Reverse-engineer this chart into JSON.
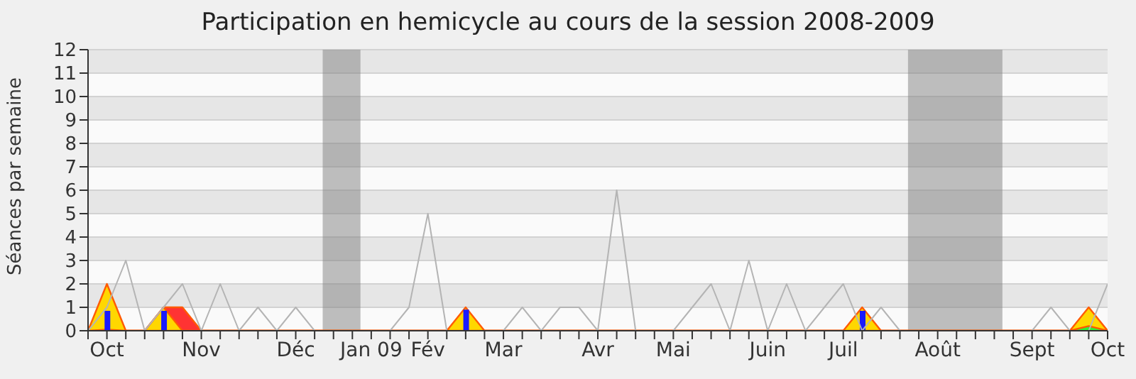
{
  "chart_data": {
    "type": "line",
    "title": "Participation en hemicycle au cours de la session 2008-2009",
    "ylabel": "Séances par semaine",
    "x": [
      "2008-09-29",
      "2008-10-06",
      "2008-10-13",
      "2008-10-20",
      "2008-10-27",
      "2008-11-03",
      "2008-11-10",
      "2008-11-17",
      "2008-11-24",
      "2008-12-01",
      "2008-12-08",
      "2008-12-15",
      "2008-12-22",
      "2008-12-29",
      "2009-01-05",
      "2009-01-12",
      "2009-01-19",
      "2009-01-26",
      "2009-02-02",
      "2009-02-09",
      "2009-02-16",
      "2009-02-23",
      "2009-03-02",
      "2009-03-09",
      "2009-03-16",
      "2009-03-23",
      "2009-03-30",
      "2009-04-06",
      "2009-04-13",
      "2009-04-20",
      "2009-04-27",
      "2009-05-04",
      "2009-05-11",
      "2009-05-18",
      "2009-05-25",
      "2009-06-01",
      "2009-06-08",
      "2009-06-15",
      "2009-06-22",
      "2009-06-29",
      "2009-07-06",
      "2009-07-13",
      "2009-07-20",
      "2009-07-27",
      "2009-08-03",
      "2009-08-10",
      "2009-08-17",
      "2009-08-24",
      "2009-08-31",
      "2009-09-07",
      "2009-09-14",
      "2009-09-21",
      "2009-09-28",
      "2009-10-05",
      "2009-10-12"
    ],
    "xlim": [
      "2008-09-29",
      "2009-10-12"
    ],
    "xticks": [
      {
        "value": "2008-09-29",
        "label": null
      },
      {
        "value": "2008-10-06",
        "label": "Oct"
      },
      {
        "value": "2008-10-13",
        "label": null
      },
      {
        "value": "2008-10-20",
        "label": null
      },
      {
        "value": "2008-10-27",
        "label": null
      },
      {
        "value": "2008-11-03",
        "label": null
      },
      {
        "value": "2008-11-10",
        "label": "Nov"
      },
      {
        "value": "2008-11-17",
        "label": null
      },
      {
        "value": "2008-11-24",
        "label": null
      },
      {
        "value": "2008-12-01",
        "label": null
      },
      {
        "value": "2008-12-08",
        "label": null
      },
      {
        "value": "2008-12-15",
        "label": "Déc"
      },
      {
        "value": "2008-12-22",
        "label": null
      },
      {
        "value": "2008-12-29",
        "label": null
      },
      {
        "value": "2009-01-05",
        "label": null
      },
      {
        "value": "2009-01-12",
        "label": "Jan 09"
      },
      {
        "value": "2009-01-19",
        "label": null
      },
      {
        "value": "2009-01-26",
        "label": null
      },
      {
        "value": "2009-02-02",
        "label": "Fév"
      },
      {
        "value": "2009-02-09",
        "label": null
      },
      {
        "value": "2009-02-16",
        "label": null
      },
      {
        "value": "2009-02-23",
        "label": null
      },
      {
        "value": "2009-03-02",
        "label": "Mar"
      },
      {
        "value": "2009-03-09",
        "label": null
      },
      {
        "value": "2009-03-16",
        "label": null
      },
      {
        "value": "2009-03-23",
        "label": null
      },
      {
        "value": "2009-03-30",
        "label": null
      },
      {
        "value": "2009-04-06",
        "label": "Avr"
      },
      {
        "value": "2009-04-13",
        "label": null
      },
      {
        "value": "2009-04-20",
        "label": null
      },
      {
        "value": "2009-04-27",
        "label": null
      },
      {
        "value": "2009-05-04",
        "label": "Mai"
      },
      {
        "value": "2009-05-11",
        "label": null
      },
      {
        "value": "2009-05-18",
        "label": null
      },
      {
        "value": "2009-05-25",
        "label": null
      },
      {
        "value": "2009-06-01",
        "label": null
      },
      {
        "value": "2009-06-08",
        "label": "Juin"
      },
      {
        "value": "2009-06-15",
        "label": null
      },
      {
        "value": "2009-06-22",
        "label": null
      },
      {
        "value": "2009-06-29",
        "label": null
      },
      {
        "value": "2009-07-06",
        "label": "Juil"
      },
      {
        "value": "2009-07-13",
        "label": null
      },
      {
        "value": "2009-07-20",
        "label": null
      },
      {
        "value": "2009-07-27",
        "label": null
      },
      {
        "value": "2009-08-03",
        "label": null
      },
      {
        "value": "2009-08-10",
        "label": "Août"
      },
      {
        "value": "2009-08-17",
        "label": null
      },
      {
        "value": "2009-08-24",
        "label": null
      },
      {
        "value": "2009-08-31",
        "label": null
      },
      {
        "value": "2009-09-07",
        "label": null
      },
      {
        "value": "2009-09-14",
        "label": "Sept"
      },
      {
        "value": "2009-09-21",
        "label": null
      },
      {
        "value": "2009-09-28",
        "label": null
      },
      {
        "value": "2009-10-05",
        "label": null
      },
      {
        "value": "2009-10-12",
        "label": "Oct"
      }
    ],
    "ylim": [
      0,
      12
    ],
    "yticks": [
      0,
      1,
      2,
      3,
      4,
      5,
      6,
      7,
      8,
      9,
      10,
      11,
      12
    ],
    "grid": "y",
    "bands": [
      {
        "axis": "x",
        "from": "2008-12-25",
        "to": "2009-01-08",
        "color": "#808080"
      },
      {
        "axis": "x",
        "from": "2009-07-30",
        "to": "2009-09-03",
        "color": "#808080"
      }
    ],
    "series": [
      {
        "color": "#b4b4b4",
        "values": [
          0,
          1,
          3,
          0,
          1,
          2,
          0,
          2,
          0,
          1,
          0,
          1,
          0,
          null,
          null,
          0,
          0,
          1,
          5,
          0,
          0,
          0,
          0,
          1,
          0,
          1,
          1,
          0,
          6,
          0,
          0,
          0,
          1,
          2,
          0,
          3,
          0,
          2,
          0,
          1,
          2,
          0,
          1,
          0,
          null,
          null,
          null,
          null,
          null,
          0,
          0,
          1,
          0,
          0,
          2
        ]
      },
      {
        "type": "area",
        "color": "#ff3333",
        "values": [
          0,
          0,
          0,
          0,
          1,
          1,
          0,
          0,
          0,
          0,
          0,
          0,
          0,
          0,
          0,
          0,
          0,
          0,
          0,
          0,
          0,
          0,
          0,
          0,
          0,
          0,
          0,
          0,
          0,
          0,
          0,
          0,
          0,
          0,
          0,
          0,
          0,
          0,
          0,
          0,
          0,
          0,
          0,
          0,
          0,
          0,
          0,
          0,
          0,
          0,
          0,
          0,
          0,
          0,
          0
        ]
      },
      {
        "type": "area",
        "color": "#ffd700",
        "values": [
          0,
          2,
          0,
          0,
          1,
          0,
          0,
          0,
          0,
          0,
          0,
          0,
          0,
          0,
          0,
          0,
          0,
          0,
          0,
          0,
          1,
          0,
          0,
          0,
          0,
          0,
          0,
          0,
          0,
          0,
          0,
          0,
          0,
          0,
          0,
          0,
          0,
          0,
          0,
          0,
          0,
          1,
          0,
          0,
          0,
          0,
          0,
          0,
          0,
          0,
          0,
          0,
          0,
          1,
          0
        ]
      },
      {
        "type": "area",
        "color": "#33ee33",
        "values": [
          0,
          0.05,
          0,
          0,
          0,
          0,
          0,
          0,
          0,
          0,
          0,
          0,
          0,
          0,
          0,
          0,
          0,
          0,
          0,
          0,
          0,
          0,
          0,
          0,
          0,
          0,
          0,
          0,
          0,
          0,
          0,
          0,
          0,
          0,
          0,
          0,
          0,
          0,
          0,
          0,
          0,
          0,
          0,
          0,
          0,
          0,
          0,
          0,
          0,
          0,
          0,
          0,
          0,
          0.2,
          0
        ]
      },
      {
        "type": "bar",
        "color": "#1a1aff",
        "values": [
          null,
          0.85,
          null,
          null,
          0.85,
          null,
          null,
          null,
          null,
          null,
          null,
          null,
          null,
          null,
          null,
          null,
          null,
          null,
          null,
          null,
          0.9,
          null,
          null,
          null,
          null,
          null,
          null,
          null,
          null,
          null,
          null,
          null,
          null,
          null,
          null,
          null,
          null,
          null,
          null,
          null,
          null,
          0.85,
          null,
          null,
          null,
          null,
          null,
          null,
          null,
          null,
          null,
          null,
          null,
          null,
          null
        ]
      }
    ]
  }
}
